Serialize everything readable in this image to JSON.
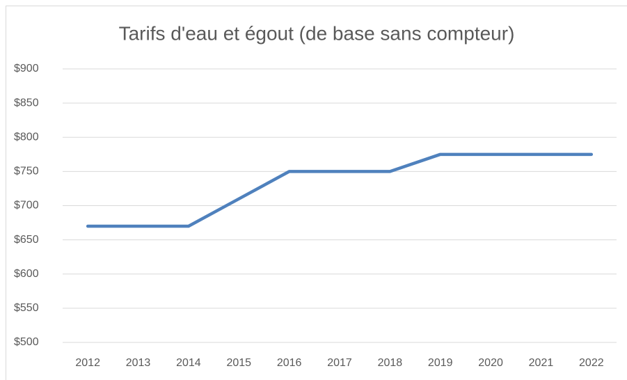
{
  "chart_data": {
    "type": "line",
    "title": "Tarifs d'eau et égout (de base sans compteur)",
    "categories": [
      "2012",
      "2013",
      "2014",
      "2015",
      "2016",
      "2017",
      "2018",
      "2019",
      "2020",
      "2021",
      "2022"
    ],
    "values": [
      670,
      670,
      670,
      710,
      750,
      750,
      750,
      775,
      775,
      775,
      775
    ],
    "color": "#4f81bd",
    "ylim": [
      500,
      900
    ],
    "yticks": [
      {
        "value": 500,
        "label": "$500"
      },
      {
        "value": 550,
        "label": "$550"
      },
      {
        "value": 600,
        "label": "$600"
      },
      {
        "value": 650,
        "label": "$650"
      },
      {
        "value": 700,
        "label": "$700"
      },
      {
        "value": 750,
        "label": "$750"
      },
      {
        "value": 800,
        "label": "$800"
      },
      {
        "value": 850,
        "label": "$850"
      },
      {
        "value": 900,
        "label": "$900"
      }
    ],
    "grid": true
  }
}
